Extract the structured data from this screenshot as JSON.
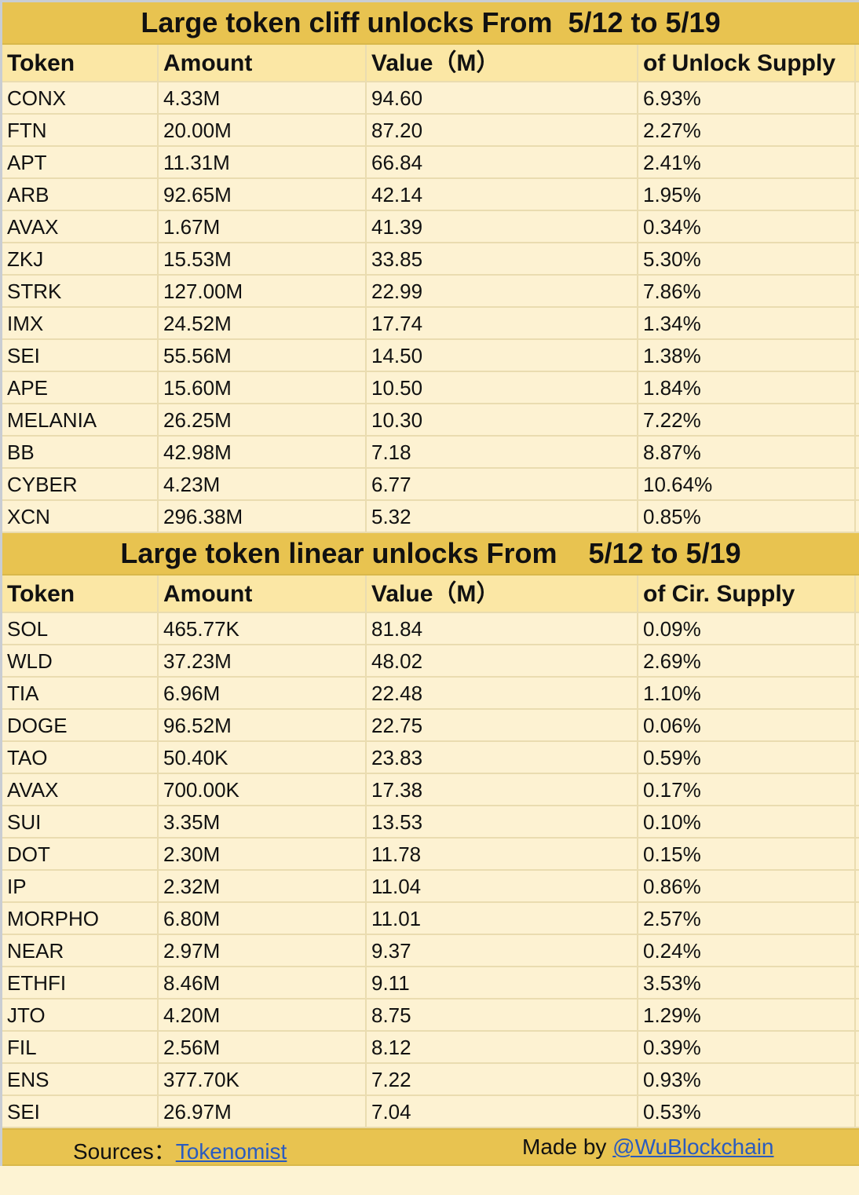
{
  "cliff": {
    "title": "Large token cliff unlocks From  5/12 to 5/19",
    "headers": [
      "Token",
      "Amount",
      "Value（M）",
      "of Unlock Supply"
    ],
    "rows": [
      [
        "CONX",
        "4.33M",
        "94.60",
        "6.93%"
      ],
      [
        "FTN",
        "20.00M",
        "87.20",
        "2.27%"
      ],
      [
        "APT",
        "11.31M",
        "66.84",
        "2.41%"
      ],
      [
        "ARB",
        "92.65M",
        "42.14",
        "1.95%"
      ],
      [
        "AVAX",
        "1.67M",
        "41.39",
        "0.34%"
      ],
      [
        "ZKJ",
        "15.53M",
        "33.85",
        "5.30%"
      ],
      [
        "STRK",
        "127.00M",
        "22.99",
        "7.86%"
      ],
      [
        "IMX",
        "24.52M",
        "17.74",
        "1.34%"
      ],
      [
        "SEI",
        "55.56M",
        "14.50",
        "1.38%"
      ],
      [
        "APE",
        "15.60M",
        "10.50",
        "1.84%"
      ],
      [
        "MELANIA",
        "26.25M",
        "10.30",
        "7.22%"
      ],
      [
        "BB",
        "42.98M",
        "7.18",
        "8.87%"
      ],
      [
        "CYBER",
        "4.23M",
        "6.77",
        "10.64%"
      ],
      [
        "XCN",
        "296.38M",
        "5.32",
        "0.85%"
      ]
    ]
  },
  "linear": {
    "title": "Large token linear unlocks From    5/12 to 5/19",
    "headers": [
      "Token",
      "Amount",
      "Value（M）",
      "of Cir. Supply"
    ],
    "rows": [
      [
        "SOL",
        "465.77K",
        "81.84",
        "0.09%"
      ],
      [
        "WLD",
        "37.23M",
        "48.02",
        "2.69%"
      ],
      [
        "TIA",
        "6.96M",
        "22.48",
        "1.10%"
      ],
      [
        "DOGE",
        "96.52M",
        "22.75",
        "0.06%"
      ],
      [
        "TAO",
        "50.40K",
        "23.83",
        "0.59%"
      ],
      [
        "AVAX",
        "700.00K",
        "17.38",
        "0.17%"
      ],
      [
        "SUI",
        "3.35M",
        "13.53",
        "0.10%"
      ],
      [
        "DOT",
        "2.30M",
        "11.78",
        "0.15%"
      ],
      [
        "IP",
        "2.32M",
        "11.04",
        "0.86%"
      ],
      [
        "MORPHO",
        "6.80M",
        "11.01",
        "2.57%"
      ],
      [
        "NEAR",
        "2.97M",
        "9.37",
        "0.24%"
      ],
      [
        "ETHFI",
        "8.46M",
        "9.11",
        "3.53%"
      ],
      [
        "JTO",
        "4.20M",
        "8.75",
        "1.29%"
      ],
      [
        "FIL",
        "2.56M",
        "8.12",
        "0.39%"
      ],
      [
        "ENS",
        "377.70K",
        "7.22",
        "0.93%"
      ],
      [
        "SEI",
        "26.97M",
        "7.04",
        "0.53%"
      ]
    ]
  },
  "footer": {
    "sources_label": "Sources：",
    "sources_link": "Tokenomist",
    "made_by_label": "Made by ",
    "made_by_link": "@WuBlockchain"
  },
  "colors": {
    "title_bg": "#e8c350",
    "header_bg": "#fbe7a5",
    "cell_bg": "#fdf2d2",
    "link": "#2a5bbf"
  }
}
